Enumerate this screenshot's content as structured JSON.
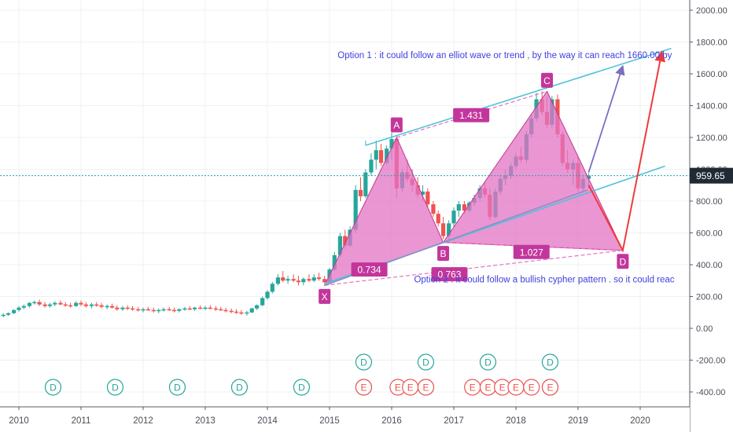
{
  "chart_data": {
    "type": "candlestick",
    "x_ticks": [
      "2010",
      "2011",
      "2012",
      "2013",
      "2014",
      "2015",
      "2016",
      "2017",
      "2018",
      "2019",
      "2020"
    ],
    "y_ticks": [
      "2000.00",
      "1800.00",
      "1600.00",
      "1400.00",
      "1200.00",
      "1000.00",
      "800.00",
      "600.00",
      "400.00",
      "200.00",
      "0.00",
      "-200.00",
      "-400.00"
    ],
    "ylim": [
      -480,
      2040
    ],
    "xlim": [
      2009.7,
      2020.5
    ],
    "grid": true,
    "last_price": {
      "value": 959.65,
      "label": "959.65"
    },
    "colors": {
      "up": "#26a69a",
      "down": "#ef5350",
      "pattern_fill": "#e373c4",
      "pattern_stroke": "#c2368f",
      "channel": "#4fc3d9",
      "projection_up": "#7b6fc0",
      "projection_down": "#ef3b3b",
      "note_text": "#3f3fe0",
      "dividend": "#26a69a",
      "earnings": "#ef5350",
      "price_tag": "#1f2a34"
    },
    "ohlc": [
      [
        2009.75,
        80,
        95,
        70,
        85
      ],
      [
        2009.83,
        85,
        100,
        78,
        95
      ],
      [
        2009.92,
        95,
        120,
        90,
        115
      ],
      [
        2010.0,
        115,
        140,
        105,
        130
      ],
      [
        2010.08,
        130,
        150,
        120,
        140
      ],
      [
        2010.17,
        140,
        165,
        130,
        160
      ],
      [
        2010.25,
        160,
        175,
        150,
        165
      ],
      [
        2010.33,
        165,
        180,
        140,
        150
      ],
      [
        2010.42,
        150,
        165,
        130,
        140
      ],
      [
        2010.5,
        140,
        160,
        130,
        150
      ],
      [
        2010.58,
        150,
        170,
        140,
        160
      ],
      [
        2010.67,
        160,
        175,
        145,
        150
      ],
      [
        2010.75,
        150,
        165,
        135,
        145
      ],
      [
        2010.83,
        145,
        160,
        130,
        140
      ],
      [
        2010.92,
        140,
        170,
        135,
        160
      ],
      [
        2011.0,
        160,
        175,
        140,
        150
      ],
      [
        2011.08,
        150,
        165,
        130,
        140
      ],
      [
        2011.17,
        140,
        160,
        125,
        150
      ],
      [
        2011.25,
        150,
        165,
        135,
        145
      ],
      [
        2011.33,
        145,
        160,
        125,
        135
      ],
      [
        2011.42,
        135,
        150,
        120,
        140
      ],
      [
        2011.5,
        140,
        155,
        125,
        130
      ],
      [
        2011.58,
        130,
        145,
        110,
        120
      ],
      [
        2011.67,
        120,
        140,
        110,
        130
      ],
      [
        2011.75,
        130,
        145,
        115,
        125
      ],
      [
        2011.83,
        125,
        140,
        110,
        120
      ],
      [
        2011.92,
        120,
        135,
        105,
        115
      ],
      [
        2012.0,
        115,
        130,
        100,
        120
      ],
      [
        2012.08,
        120,
        135,
        110,
        115
      ],
      [
        2012.17,
        115,
        130,
        100,
        110
      ],
      [
        2012.25,
        110,
        125,
        95,
        115
      ],
      [
        2012.33,
        115,
        130,
        105,
        120
      ],
      [
        2012.42,
        120,
        135,
        110,
        115
      ],
      [
        2012.5,
        115,
        130,
        100,
        110
      ],
      [
        2012.58,
        110,
        125,
        100,
        120
      ],
      [
        2012.67,
        120,
        135,
        110,
        125
      ],
      [
        2012.75,
        125,
        140,
        115,
        120
      ],
      [
        2012.83,
        120,
        135,
        110,
        130
      ],
      [
        2012.92,
        130,
        145,
        120,
        125
      ],
      [
        2013.0,
        125,
        140,
        115,
        130
      ],
      [
        2013.08,
        130,
        145,
        120,
        125
      ],
      [
        2013.17,
        125,
        140,
        110,
        120
      ],
      [
        2013.25,
        120,
        135,
        110,
        115
      ],
      [
        2013.33,
        115,
        130,
        100,
        110
      ],
      [
        2013.42,
        110,
        125,
        95,
        105
      ],
      [
        2013.5,
        105,
        120,
        90,
        100
      ],
      [
        2013.58,
        100,
        115,
        85,
        95
      ],
      [
        2013.67,
        95,
        110,
        80,
        100
      ],
      [
        2013.75,
        100,
        130,
        95,
        125
      ],
      [
        2013.83,
        125,
        150,
        115,
        145
      ],
      [
        2013.92,
        145,
        200,
        140,
        190
      ],
      [
        2014.0,
        190,
        240,
        180,
        230
      ],
      [
        2014.08,
        230,
        290,
        220,
        280
      ],
      [
        2014.17,
        280,
        340,
        270,
        320
      ],
      [
        2014.25,
        320,
        360,
        290,
        300
      ],
      [
        2014.33,
        300,
        330,
        280,
        310
      ],
      [
        2014.42,
        310,
        340,
        290,
        300
      ],
      [
        2014.5,
        300,
        330,
        270,
        290
      ],
      [
        2014.58,
        290,
        320,
        270,
        310
      ],
      [
        2014.67,
        310,
        340,
        290,
        300
      ],
      [
        2014.75,
        300,
        340,
        290,
        320
      ],
      [
        2014.83,
        320,
        350,
        300,
        310
      ],
      [
        2014.92,
        310,
        330,
        280,
        290
      ],
      [
        2015.0,
        290,
        380,
        285,
        370
      ],
      [
        2015.08,
        370,
        480,
        360,
        460
      ],
      [
        2015.17,
        460,
        600,
        450,
        580
      ],
      [
        2015.25,
        580,
        620,
        500,
        520
      ],
      [
        2015.33,
        520,
        640,
        510,
        620
      ],
      [
        2015.42,
        620,
        900,
        600,
        870
      ],
      [
        2015.5,
        870,
        950,
        800,
        830
      ],
      [
        2015.58,
        830,
        1000,
        820,
        980
      ],
      [
        2015.67,
        980,
        1100,
        960,
        1060
      ],
      [
        2015.75,
        1060,
        1180,
        1000,
        1120
      ],
      [
        2015.83,
        1120,
        1160,
        1020,
        1040
      ],
      [
        2015.92,
        1040,
        1150,
        1030,
        1130
      ],
      [
        2016.0,
        1130,
        1230,
        1060,
        1190
      ],
      [
        2016.08,
        1190,
        1210,
        820,
        880
      ],
      [
        2016.17,
        880,
        1000,
        860,
        980
      ],
      [
        2016.25,
        980,
        1060,
        920,
        940
      ],
      [
        2016.33,
        940,
        1000,
        860,
        900
      ],
      [
        2016.42,
        900,
        950,
        820,
        840
      ],
      [
        2016.5,
        840,
        900,
        800,
        860
      ],
      [
        2016.58,
        860,
        880,
        760,
        780
      ],
      [
        2016.67,
        780,
        800,
        700,
        720
      ],
      [
        2016.75,
        720,
        740,
        640,
        660
      ],
      [
        2016.83,
        660,
        700,
        560,
        580
      ],
      [
        2016.92,
        580,
        680,
        550,
        660
      ],
      [
        2017.0,
        660,
        760,
        640,
        740
      ],
      [
        2017.08,
        740,
        800,
        700,
        780
      ],
      [
        2017.17,
        780,
        800,
        720,
        740
      ],
      [
        2017.25,
        740,
        800,
        730,
        790
      ],
      [
        2017.33,
        790,
        840,
        770,
        820
      ],
      [
        2017.42,
        820,
        900,
        800,
        880
      ],
      [
        2017.5,
        880,
        920,
        820,
        840
      ],
      [
        2017.58,
        840,
        880,
        680,
        700
      ],
      [
        2017.67,
        700,
        880,
        690,
        860
      ],
      [
        2017.75,
        860,
        960,
        840,
        940
      ],
      [
        2017.83,
        940,
        1000,
        900,
        960
      ],
      [
        2017.92,
        960,
        1040,
        940,
        1020
      ],
      [
        2018.0,
        1020,
        1100,
        1000,
        1080
      ],
      [
        2018.08,
        1080,
        1140,
        1040,
        1060
      ],
      [
        2018.17,
        1060,
        1240,
        1040,
        1220
      ],
      [
        2018.25,
        1220,
        1340,
        1200,
        1320
      ],
      [
        2018.33,
        1320,
        1480,
        1300,
        1440
      ],
      [
        2018.42,
        1440,
        1490,
        1340,
        1360
      ],
      [
        2018.5,
        1360,
        1460,
        1260,
        1280
      ],
      [
        2018.58,
        1280,
        1460,
        1260,
        1440
      ],
      [
        2018.67,
        1440,
        1470,
        1200,
        1220
      ],
      [
        2018.75,
        1220,
        1240,
        1020,
        1040
      ],
      [
        2018.83,
        1040,
        1120,
        980,
        1000
      ],
      [
        2018.92,
        1000,
        1060,
        900,
        1040
      ],
      [
        2019.0,
        1040,
        1080,
        860,
        880
      ],
      [
        2019.08,
        880,
        960,
        860,
        940
      ],
      [
        2019.17,
        940,
        975,
        880,
        960
      ]
    ],
    "pattern_points": [
      {
        "label": "X",
        "x": 2014.92,
        "y": 270
      },
      {
        "label": "A",
        "x": 2016.08,
        "y": 1200
      },
      {
        "label": "B",
        "x": 2016.83,
        "y": 540
      },
      {
        "label": "C",
        "x": 2018.5,
        "y": 1490
      },
      {
        "label": "D",
        "x": 2019.72,
        "y": 490
      }
    ],
    "ratios": [
      {
        "text": "0.734",
        "x": 2015.64,
        "y": 370
      },
      {
        "text": "0.763",
        "x": 2016.93,
        "y": 340
      },
      {
        "text": "1.027",
        "x": 2018.25,
        "y": 480
      },
      {
        "text": "1.431",
        "x": 2017.28,
        "y": 1340
      }
    ],
    "channel_upper": [
      [
        2015.58,
        1150
      ],
      [
        2020.5,
        1760
      ]
    ],
    "channel_lower": [
      [
        2014.92,
        280
      ],
      [
        2020.4,
        1020
      ]
    ],
    "projection_up": [
      [
        2019.17,
        980
      ],
      [
        2019.72,
        1650
      ]
    ],
    "projection_down": [
      [
        2019.17,
        900
      ],
      [
        2019.72,
        490
      ],
      [
        2020.35,
        1740
      ]
    ],
    "annotations": [
      {
        "text": "Option 1 : it could follow an elliot wave or trend , by the way it can reach 1660.00 by",
        "x": 2015.13,
        "y": 1700
      },
      {
        "text": "Option 2 : it could follow a bullish cypher pattern . so it could reac",
        "x": 2016.36,
        "y": 290
      }
    ],
    "dividend_events": [
      2010.55,
      2011.55,
      2012.55,
      2013.55,
      2014.55,
      2015.55,
      2016.55,
      2017.55,
      2018.55
    ],
    "dividend_events_upper": [
      2015.55,
      2016.55,
      2017.55,
      2018.55
    ],
    "earnings_events": [
      2015.55,
      2016.1,
      2016.3,
      2016.55,
      2017.3,
      2017.55,
      2017.78,
      2018.0,
      2018.25,
      2018.55
    ],
    "dividend_label": "D",
    "earnings_label": "E"
  }
}
